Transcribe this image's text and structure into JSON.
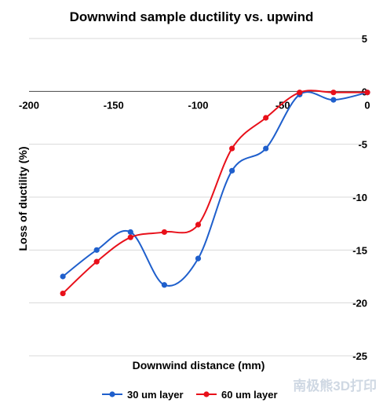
{
  "chart_data": {
    "type": "line",
    "title": "Downwind sample ductility vs. upwind",
    "xlabel": "Downwind distance (mm)",
    "ylabel": "Loss of ductility (%)",
    "xlim": [
      -200,
      0
    ],
    "ylim": [
      -25,
      5
    ],
    "x_ticks": [
      -200,
      -150,
      -100,
      -50,
      0
    ],
    "y_ticks": [
      5,
      0,
      -5,
      -10,
      -15,
      -20,
      -25
    ],
    "x_tick_labels": [
      "-200",
      "-150",
      "-100",
      "-50",
      "0"
    ],
    "y_tick_labels": [
      "5",
      "0",
      "-5",
      "-10",
      "-15",
      "-20",
      "-25"
    ],
    "grid": true,
    "legend_position": "bottom",
    "series": [
      {
        "name": "30 um layer",
        "color": "#1f5fcc",
        "x": [
          -180,
          -160,
          -140,
          -120,
          -100,
          -80,
          -60,
          -40,
          -20,
          0
        ],
        "y": [
          -17.5,
          -15.0,
          -13.3,
          -18.3,
          -15.8,
          -7.5,
          -5.4,
          -0.3,
          -0.8,
          -0.1
        ]
      },
      {
        "name": "60 um layer",
        "color": "#e8101a",
        "x": [
          -180,
          -160,
          -140,
          -120,
          -100,
          -80,
          -60,
          -40,
          -20,
          0
        ],
        "y": [
          -19.1,
          -16.1,
          -13.8,
          -13.3,
          -12.6,
          -5.4,
          -2.5,
          -0.1,
          -0.1,
          -0.1
        ]
      }
    ]
  },
  "watermark": "南极熊3D打印"
}
